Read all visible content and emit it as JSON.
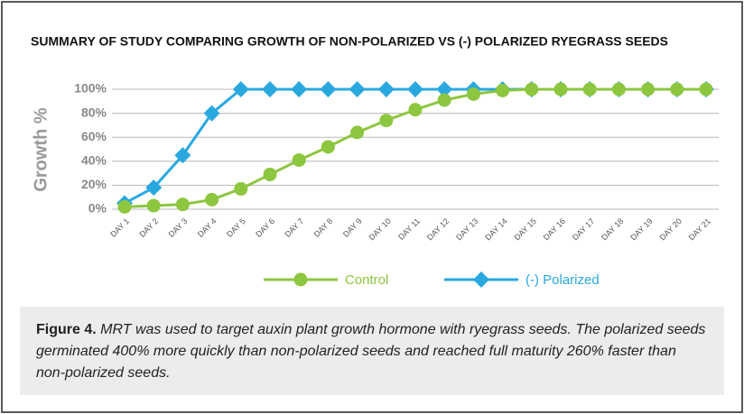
{
  "chart_data": {
    "type": "line",
    "title": "SUMMARY OF STUDY COMPARING GROWTH OF NON-POLARIZED VS (-) POLARIZED RYEGRASS SEEDS",
    "y_label": "Growth %",
    "categories": [
      "DAY 1",
      "DAY 2",
      "DAY 3",
      "DAY 4",
      "DAY 5",
      "DAY 6",
      "DAY 7",
      "DAY 8",
      "DAY 9",
      "DAY 10",
      "DAY 11",
      "DAY 12",
      "DAY 13",
      "DAY 14",
      "DAY 15",
      "DAY 16",
      "DAY 17",
      "DAY 18",
      "DAY 19",
      "DAY 20",
      "DAY 21"
    ],
    "series": [
      {
        "name": "Control",
        "color": "#8dc63f",
        "marker": "circle",
        "values": [
          2,
          3,
          4,
          8,
          17,
          29,
          41,
          52,
          64,
          74,
          83,
          91,
          96,
          99,
          100,
          100,
          100,
          100,
          100,
          100,
          100
        ]
      },
      {
        "name": "(-) Polarized",
        "color": "#29a8e0",
        "marker": "diamond",
        "values": [
          5,
          18,
          45,
          80,
          100,
          100,
          100,
          100,
          100,
          100,
          100,
          100,
          100,
          100,
          100,
          100,
          100,
          100,
          100,
          100,
          100
        ]
      }
    ],
    "ylim": [
      0,
      100
    ],
    "yticks": [
      {
        "value": 0,
        "label": "0%"
      },
      {
        "value": 20,
        "label": "20%"
      },
      {
        "value": 40,
        "label": "40%"
      },
      {
        "value": 60,
        "label": "60%"
      },
      {
        "value": 80,
        "label": "80%"
      },
      {
        "value": 100,
        "label": "100%"
      }
    ],
    "grid": true,
    "legend": "bottom"
  },
  "caption": {
    "label": "Figure 4.",
    "text": "MRT was used to target auxin plant growth hormone with ryegrass seeds. The polarized seeds germinated 400% more quickly than non-polarized seeds and reached full maturity 260% faster than non-polarized seeds."
  }
}
